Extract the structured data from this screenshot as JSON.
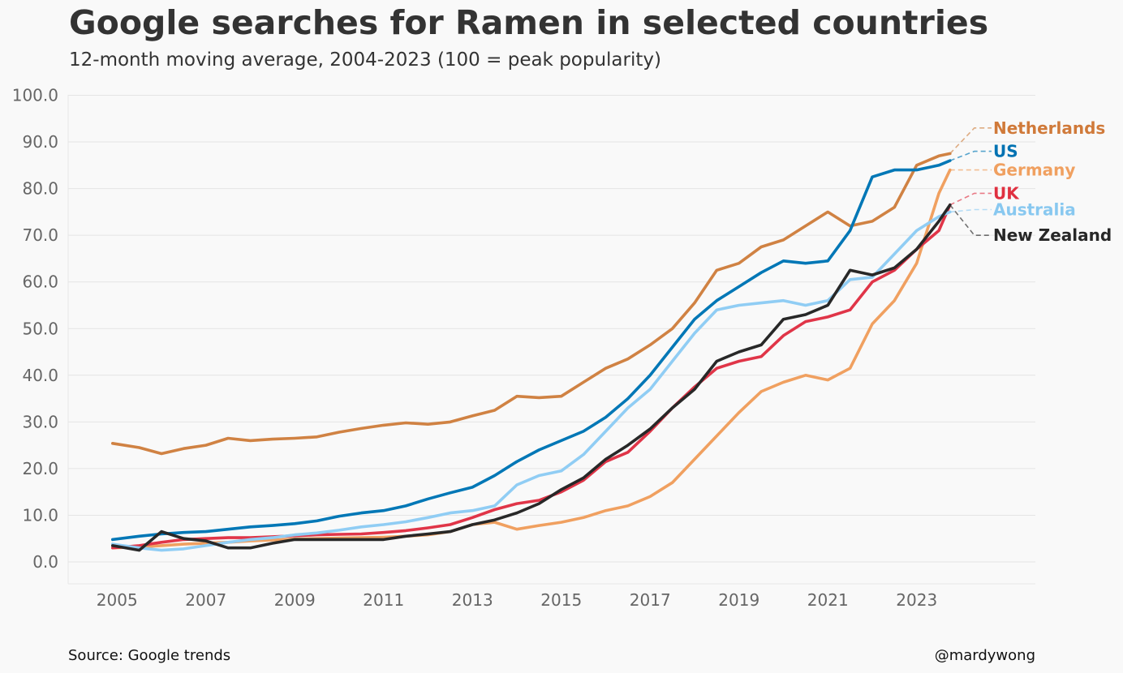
{
  "title": "Google searches for Ramen in selected countries",
  "subtitle": "12-month moving average, 2004-2023 (100 = peak popularity)",
  "source": "Source: Google trends",
  "credit": "@mardywong",
  "chart_data": {
    "type": "line",
    "x_ticks": [
      "2005",
      "2007",
      "2009",
      "2011",
      "2013",
      "2015",
      "2017",
      "2019",
      "2021",
      "2023"
    ],
    "y_ticks": [
      "0.0",
      "10.0",
      "20.0",
      "30.0",
      "40.0",
      "50.0",
      "60.0",
      "70.0",
      "80.0",
      "90.0",
      "100.0"
    ],
    "xlim": [
      2003.9,
      2025.6
    ],
    "ylim": [
      -4.5,
      100
    ],
    "grid": "horizontal",
    "x": [
      2004.9,
      2005.5,
      2006.0,
      2006.5,
      2007.0,
      2007.5,
      2008.0,
      2008.5,
      2009.0,
      2009.5,
      2010.0,
      2010.5,
      2011.0,
      2011.5,
      2012.0,
      2012.5,
      2013.0,
      2013.5,
      2014.0,
      2014.5,
      2015.0,
      2015.5,
      2016.0,
      2016.5,
      2017.0,
      2017.5,
      2018.0,
      2018.5,
      2019.0,
      2019.5,
      2020.0,
      2020.5,
      2021.0,
      2021.5,
      2022.0,
      2022.5,
      2023.0,
      2023.5,
      2023.75
    ],
    "series": [
      {
        "name": "Netherlands",
        "color": "#d08243",
        "label_color": "#d07a3a",
        "label_value": 93.0,
        "values": [
          25.4,
          24.5,
          23.2,
          24.3,
          25.0,
          26.5,
          26.0,
          26.3,
          26.5,
          26.8,
          27.8,
          28.6,
          29.3,
          29.8,
          29.5,
          30.0,
          31.3,
          32.5,
          35.5,
          35.2,
          35.5,
          38.5,
          41.5,
          43.5,
          46.5,
          50.0,
          55.5,
          62.5,
          64.0,
          67.5,
          69.0,
          72.0,
          75.0,
          72.0,
          73.0,
          76.0,
          85.0,
          87.0,
          87.5
        ]
      },
      {
        "name": "US",
        "color": "#0077b6",
        "label_color": "#0072b2",
        "label_value": 88.0,
        "values": [
          4.8,
          5.5,
          6.0,
          6.3,
          6.5,
          7.0,
          7.5,
          7.8,
          8.2,
          8.8,
          9.8,
          10.5,
          11.0,
          12.0,
          13.5,
          14.8,
          16.0,
          18.5,
          21.5,
          24.0,
          26.0,
          28.0,
          31.0,
          35.0,
          40.0,
          46.0,
          52.0,
          56.0,
          59.0,
          62.0,
          64.5,
          64.0,
          64.5,
          71.0,
          82.5,
          84.0,
          84.0,
          85.0,
          86.0
        ]
      },
      {
        "name": "Germany",
        "color": "#f0a060",
        "label_color": "#f0a060",
        "label_value": 84.0,
        "values": [
          3.0,
          3.2,
          3.5,
          3.8,
          4.0,
          4.2,
          4.5,
          4.7,
          4.9,
          5.0,
          5.1,
          5.2,
          5.3,
          5.5,
          5.8,
          6.5,
          8.0,
          8.5,
          7.0,
          7.8,
          8.5,
          9.5,
          11.0,
          12.0,
          14.0,
          17.0,
          22.0,
          27.0,
          32.0,
          36.5,
          38.5,
          40.0,
          39.0,
          41.5,
          51.0,
          56.0,
          64.0,
          79.0,
          84.0
        ]
      },
      {
        "name": "UK",
        "color": "#e03548",
        "label_color": "#e03040",
        "label_value": 79.0,
        "values": [
          3.0,
          3.5,
          4.2,
          4.8,
          5.0,
          5.2,
          5.2,
          5.4,
          5.6,
          5.8,
          5.9,
          6.0,
          6.3,
          6.7,
          7.3,
          8.0,
          9.5,
          11.2,
          12.5,
          13.2,
          15.0,
          17.5,
          21.5,
          23.5,
          28.0,
          33.0,
          37.5,
          41.5,
          43.0,
          44.0,
          48.5,
          51.5,
          52.5,
          54.0,
          60.0,
          62.5,
          67.0,
          71.0,
          76.5
        ]
      },
      {
        "name": "Australia",
        "color": "#90cdf4",
        "label_color": "#88c8f0",
        "label_value": 75.5,
        "values": [
          3.8,
          3.0,
          2.5,
          2.8,
          3.5,
          4.2,
          4.8,
          5.2,
          5.8,
          6.2,
          6.8,
          7.5,
          8.0,
          8.6,
          9.5,
          10.5,
          11.0,
          12.0,
          16.5,
          18.5,
          19.5,
          23.0,
          28.0,
          33.0,
          37.0,
          43.0,
          49.0,
          54.0,
          55.0,
          55.5,
          56.0,
          55.0,
          56.0,
          60.5,
          61.0,
          66.0,
          71.0,
          74.0,
          75.0
        ]
      },
      {
        "name": "New Zealand",
        "color": "#282828",
        "label_color": "#282828",
        "label_value": 70.0,
        "values": [
          3.5,
          2.5,
          6.5,
          5.0,
          4.5,
          3.0,
          3.0,
          4.0,
          4.8,
          4.8,
          4.8,
          4.8,
          4.8,
          5.5,
          6.0,
          6.5,
          8.0,
          9.0,
          10.5,
          12.5,
          15.5,
          18.0,
          22.0,
          25.0,
          28.5,
          33.0,
          37.0,
          43.0,
          45.0,
          46.5,
          52.0,
          53.0,
          55.0,
          62.5,
          61.5,
          63.0,
          67.0,
          73.0,
          76.5
        ]
      }
    ]
  }
}
